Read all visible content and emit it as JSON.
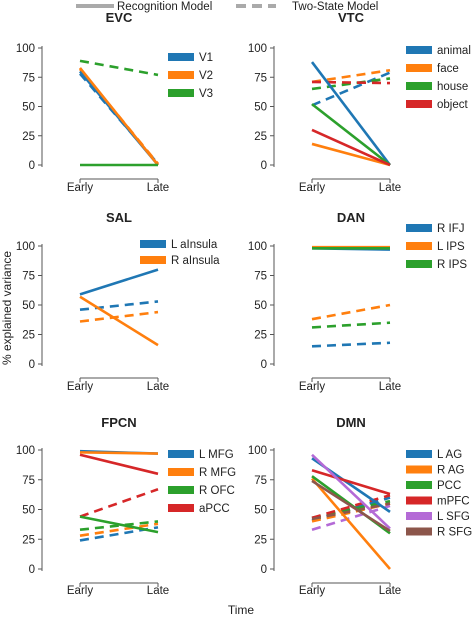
{
  "figure": {
    "legend_top": [
      {
        "label": "Recognition Model",
        "style": "solid"
      },
      {
        "label": "Two-State Model",
        "style": "dashed"
      }
    ],
    "ylabel": "% explained variance",
    "xlabel": "Time"
  },
  "chart_data": [
    {
      "type": "line",
      "title": "EVC",
      "categories": [
        "Early",
        "Late"
      ],
      "ylim": [
        0,
        100
      ],
      "yticks": [
        0,
        25,
        50,
        75,
        100
      ],
      "legend_position": "top-right",
      "series": [
        {
          "name": "V1",
          "color": "#1f77b4",
          "solid": [
            80,
            0
          ],
          "dashed": [
            78,
            1
          ]
        },
        {
          "name": "V2",
          "color": "#ff7f0e",
          "solid": [
            83,
            0
          ],
          "dashed": [
            82,
            1
          ]
        },
        {
          "name": "V3",
          "color": "#2ca02c",
          "solid": [
            0,
            0
          ],
          "dashed": [
            89,
            77
          ]
        }
      ]
    },
    {
      "type": "line",
      "title": "VTC",
      "categories": [
        "Early",
        "Late"
      ],
      "ylim": [
        0,
        100
      ],
      "yticks": [
        0,
        25,
        50,
        75,
        100
      ],
      "legend_position": "top-right",
      "series": [
        {
          "name": "animal",
          "color": "#1f77b4",
          "solid": [
            88,
            0
          ],
          "dashed": [
            51,
            79
          ]
        },
        {
          "name": "face",
          "color": "#ff7f0e",
          "solid": [
            18,
            0
          ],
          "dashed": [
            71,
            81
          ]
        },
        {
          "name": "house",
          "color": "#2ca02c",
          "solid": [
            52,
            0
          ],
          "dashed": [
            65,
            74
          ]
        },
        {
          "name": "object",
          "color": "#d62728",
          "solid": [
            30,
            0
          ],
          "dashed": [
            71,
            70
          ]
        }
      ]
    },
    {
      "type": "line",
      "title": "SAL",
      "categories": [
        "Early",
        "Late"
      ],
      "ylim": [
        0,
        100
      ],
      "yticks": [
        0,
        25,
        50,
        75,
        100
      ],
      "legend_position": "top-right",
      "series": [
        {
          "name": "L aInsula",
          "color": "#1f77b4",
          "solid": [
            59,
            80
          ],
          "dashed": [
            46,
            53
          ]
        },
        {
          "name": "R aInsula",
          "color": "#ff7f0e",
          "solid": [
            57,
            16
          ],
          "dashed": [
            36,
            44
          ]
        }
      ]
    },
    {
      "type": "line",
      "title": "DAN",
      "categories": [
        "Early",
        "Late"
      ],
      "ylim": [
        0,
        100
      ],
      "yticks": [
        0,
        25,
        50,
        75,
        100
      ],
      "legend_position": "top-right",
      "series": [
        {
          "name": "R IFJ",
          "color": "#1f77b4",
          "solid": [
            98,
            97
          ],
          "dashed": [
            15,
            18
          ]
        },
        {
          "name": "L IPS",
          "color": "#ff7f0e",
          "solid": [
            99,
            99
          ],
          "dashed": [
            38,
            50
          ]
        },
        {
          "name": "R IPS",
          "color": "#2ca02c",
          "solid": [
            98,
            98
          ],
          "dashed": [
            31,
            35
          ]
        }
      ]
    },
    {
      "type": "line",
      "title": "FPCN",
      "categories": [
        "Early",
        "Late"
      ],
      "ylim": [
        0,
        100
      ],
      "yticks": [
        0,
        25,
        50,
        75,
        100
      ],
      "legend_position": "top-right",
      "series": [
        {
          "name": "L MFG",
          "color": "#1f77b4",
          "solid": [
            99,
            97
          ],
          "dashed": [
            24,
            35
          ]
        },
        {
          "name": "R MFG",
          "color": "#ff7f0e",
          "solid": [
            98,
            97
          ],
          "dashed": [
            28,
            38
          ]
        },
        {
          "name": "R OFC",
          "color": "#2ca02c",
          "solid": [
            44,
            31
          ],
          "dashed": [
            33,
            40
          ]
        },
        {
          "name": "aPCC",
          "color": "#d62728",
          "solid": [
            96,
            80
          ],
          "dashed": [
            44,
            67
          ]
        }
      ]
    },
    {
      "type": "line",
      "title": "DMN",
      "categories": [
        "Early",
        "Late"
      ],
      "ylim": [
        0,
        100
      ],
      "yticks": [
        0,
        25,
        50,
        75,
        100
      ],
      "legend_position": "top-right",
      "series": [
        {
          "name": "L AG",
          "color": "#1f77b4",
          "solid": [
            93,
            48
          ],
          "dashed": [
            41,
            60
          ]
        },
        {
          "name": "R AG",
          "color": "#ff7f0e",
          "solid": [
            76,
            0
          ],
          "dashed": [
            40,
            55
          ]
        },
        {
          "name": "PCC",
          "color": "#2ca02c",
          "solid": [
            78,
            30
          ],
          "dashed": [
            43,
            57
          ]
        },
        {
          "name": "mPFC",
          "color": "#d62728",
          "solid": [
            83,
            63
          ],
          "dashed": [
            43,
            62
          ]
        },
        {
          "name": "L SFG",
          "color": "#b46ad6",
          "solid": [
            96,
            34
          ],
          "dashed": [
            33,
            53
          ]
        },
        {
          "name": "R SFG",
          "color": "#8c564b",
          "solid": [
            74,
            32
          ],
          "dashed": [
            42,
            55
          ]
        }
      ]
    }
  ]
}
